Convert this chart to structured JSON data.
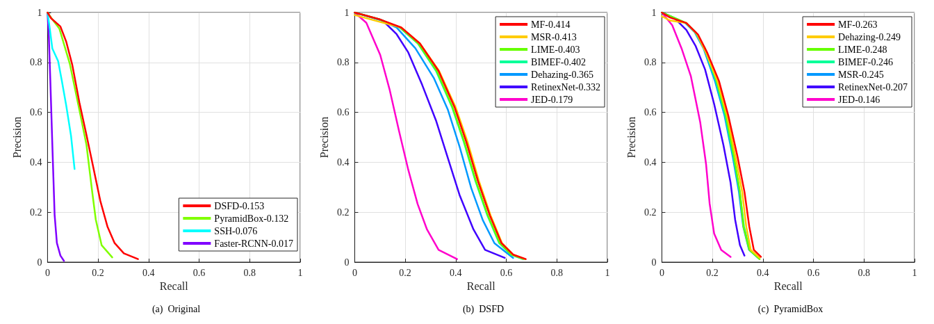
{
  "chart_data": [
    {
      "type": "line",
      "title": "(a)  Original",
      "xlabel": "Recall",
      "ylabel": "Precision",
      "xlim": [
        0,
        1
      ],
      "ylim": [
        0,
        1
      ],
      "xticks": [
        0,
        0.2,
        0.4,
        0.6,
        0.8,
        1
      ],
      "yticks": [
        0,
        0.2,
        0.4,
        0.6,
        0.8,
        1
      ],
      "grid": true,
      "legend": "bottom right",
      "marker": "none",
      "line_style": "solid",
      "series": [
        {
          "name": "DSFD-0.153",
          "color": "#ff0000",
          "x": [
            0,
            0.014,
            0.051,
            0.074,
            0.098,
            0.126,
            0.154,
            0.181,
            0.209,
            0.237,
            0.265,
            0.302,
            0.358
          ],
          "values": [
            1,
            0.977,
            0.944,
            0.883,
            0.79,
            0.64,
            0.51,
            0.38,
            0.245,
            0.143,
            0.077,
            0.035,
            0.012
          ]
        },
        {
          "name": "PyramidBox-0.132",
          "color": "#80ff00",
          "x": [
            0,
            0.023,
            0.047,
            0.088,
            0.126,
            0.154,
            0.177,
            0.191,
            0.214,
            0.256
          ],
          "values": [
            1,
            0.967,
            0.935,
            0.795,
            0.61,
            0.47,
            0.28,
            0.17,
            0.068,
            0.019
          ]
        },
        {
          "name": "SSH-0.076",
          "color": "#00ffff",
          "x": [
            0,
            0.009,
            0.019,
            0.042,
            0.056,
            0.074,
            0.093,
            0.107
          ],
          "values": [
            1,
            0.935,
            0.856,
            0.805,
            0.73,
            0.627,
            0.506,
            0.373
          ]
        },
        {
          "name": "Faster-RCNN-0.017",
          "color": "#8000ff",
          "x": [
            0,
            0.005,
            0.011,
            0.019,
            0.028,
            0.037,
            0.051,
            0.065
          ],
          "values": [
            1,
            0.91,
            0.73,
            0.47,
            0.19,
            0.077,
            0.026,
            0.005
          ]
        }
      ]
    },
    {
      "type": "line",
      "title": "(b)  DSFD",
      "xlabel": "Recall",
      "ylabel": "Precision",
      "xlim": [
        0,
        1
      ],
      "ylim": [
        0,
        1
      ],
      "xticks": [
        0,
        0.2,
        0.4,
        0.6,
        0.8,
        1
      ],
      "yticks": [
        0,
        0.2,
        0.4,
        0.6,
        0.8,
        1
      ],
      "grid": true,
      "legend": "top right",
      "marker": "none",
      "line_style": "solid",
      "series": [
        {
          "name": "MF-0.414",
          "color": "#ff0000",
          "x": [
            0,
            0.101,
            0.184,
            0.258,
            0.332,
            0.396,
            0.442,
            0.488,
            0.535,
            0.581,
            0.627,
            0.677
          ],
          "values": [
            1,
            0.972,
            0.94,
            0.876,
            0.766,
            0.619,
            0.481,
            0.324,
            0.187,
            0.076,
            0.03,
            0.012
          ]
        },
        {
          "name": "MSR-0.413",
          "color": "#ffcc00",
          "x": [
            0,
            0.101,
            0.184,
            0.258,
            0.334,
            0.4,
            0.447,
            0.492,
            0.538,
            0.583,
            0.627,
            0.675
          ],
          "values": [
            0.99,
            0.962,
            0.94,
            0.876,
            0.766,
            0.619,
            0.481,
            0.324,
            0.187,
            0.076,
            0.03,
            0.012
          ]
        },
        {
          "name": "LIME-0.403",
          "color": "#66ff00",
          "x": [
            0,
            0.1,
            0.18,
            0.252,
            0.325,
            0.388,
            0.434,
            0.48,
            0.527,
            0.574,
            0.62,
            0.67
          ],
          "values": [
            1,
            0.972,
            0.94,
            0.876,
            0.766,
            0.619,
            0.481,
            0.324,
            0.187,
            0.076,
            0.03,
            0.012
          ]
        },
        {
          "name": "BIMEF-0.402",
          "color": "#00ff99",
          "x": [
            0,
            0.1,
            0.178,
            0.25,
            0.322,
            0.386,
            0.432,
            0.478,
            0.525,
            0.572,
            0.618,
            0.665
          ],
          "values": [
            1,
            0.972,
            0.94,
            0.876,
            0.766,
            0.619,
            0.481,
            0.324,
            0.187,
            0.076,
            0.03,
            0.012
          ]
        },
        {
          "name": "Dehazing-0.365",
          "color": "#0099ff",
          "x": [
            0,
            0.101,
            0.166,
            0.24,
            0.313,
            0.369,
            0.415,
            0.461,
            0.507,
            0.553,
            0.627
          ],
          "values": [
            1,
            0.97,
            0.94,
            0.857,
            0.738,
            0.61,
            0.463,
            0.297,
            0.168,
            0.076,
            0.017
          ]
        },
        {
          "name": "RetinexNet-0.332",
          "color": "#4000ff",
          "x": [
            0,
            0.111,
            0.166,
            0.212,
            0.267,
            0.323,
            0.369,
            0.415,
            0.47,
            0.516,
            0.594
          ],
          "values": [
            1,
            0.968,
            0.913,
            0.84,
            0.71,
            0.564,
            0.416,
            0.269,
            0.131,
            0.049,
            0.017
          ]
        },
        {
          "name": "JED-0.179",
          "color": "#ff00cc",
          "x": [
            0,
            0.046,
            0.101,
            0.138,
            0.175,
            0.212,
            0.249,
            0.286,
            0.332,
            0.405
          ],
          "values": [
            1,
            0.959,
            0.83,
            0.692,
            0.527,
            0.37,
            0.233,
            0.131,
            0.049,
            0.012
          ]
        }
      ]
    },
    {
      "type": "line",
      "title": "(c)  PyramidBox",
      "xlabel": "Recall",
      "ylabel": "Precision",
      "xlim": [
        0,
        1
      ],
      "ylim": [
        0,
        1
      ],
      "xticks": [
        0,
        0.2,
        0.4,
        0.6,
        0.8,
        1
      ],
      "yticks": [
        0,
        0.2,
        0.4,
        0.6,
        0.8,
        1
      ],
      "grid": true,
      "legend": "top right",
      "marker": "none",
      "line_style": "solid",
      "series": [
        {
          "name": "MF-0.263",
          "color": "#ff0000",
          "x": [
            0,
            0.032,
            0.097,
            0.143,
            0.18,
            0.226,
            0.263,
            0.3,
            0.327,
            0.346,
            0.364,
            0.392
          ],
          "values": [
            1,
            0.98,
            0.958,
            0.912,
            0.838,
            0.726,
            0.587,
            0.42,
            0.281,
            0.142,
            0.049,
            0.021
          ]
        },
        {
          "name": "Dehazing-0.249",
          "color": "#ffcc00",
          "x": [
            0,
            0.032,
            0.097,
            0.14,
            0.175,
            0.22,
            0.258,
            0.292,
            0.318,
            0.334,
            0.352,
            0.387
          ],
          "values": [
            0.985,
            0.968,
            0.958,
            0.912,
            0.838,
            0.726,
            0.587,
            0.42,
            0.281,
            0.142,
            0.049,
            0.017
          ]
        },
        {
          "name": "LIME-0.248",
          "color": "#66ff00",
          "x": [
            0,
            0.097,
            0.134,
            0.171,
            0.217,
            0.254,
            0.286,
            0.309,
            0.323,
            0.346,
            0.387
          ],
          "values": [
            1,
            0.958,
            0.921,
            0.856,
            0.726,
            0.587,
            0.42,
            0.281,
            0.142,
            0.049,
            0.012
          ]
        },
        {
          "name": "BIMEF-0.246",
          "color": "#00ff99",
          "x": [
            0,
            0.095,
            0.132,
            0.168,
            0.214,
            0.251,
            0.284,
            0.308,
            0.325,
            0.348,
            0.385
          ],
          "values": [
            1,
            0.958,
            0.921,
            0.856,
            0.726,
            0.587,
            0.42,
            0.281,
            0.142,
            0.049,
            0.014
          ]
        },
        {
          "name": "MSR-0.245",
          "color": "#0099ff",
          "x": [
            0,
            0.093,
            0.13,
            0.165,
            0.21,
            0.248,
            0.281,
            0.305,
            0.322,
            0.345,
            0.38
          ],
          "values": [
            1,
            0.958,
            0.921,
            0.856,
            0.726,
            0.587,
            0.42,
            0.281,
            0.142,
            0.049,
            0.018
          ]
        },
        {
          "name": "RetinexNet-0.207",
          "color": "#4000ff",
          "x": [
            0,
            0.051,
            0.097,
            0.134,
            0.171,
            0.207,
            0.244,
            0.272,
            0.29,
            0.309,
            0.327
          ],
          "values": [
            1,
            0.977,
            0.93,
            0.865,
            0.772,
            0.633,
            0.467,
            0.318,
            0.17,
            0.068,
            0.026
          ]
        },
        {
          "name": "JED-0.146",
          "color": "#ff00cc",
          "x": [
            0,
            0.041,
            0.078,
            0.115,
            0.152,
            0.175,
            0.189,
            0.207,
            0.235,
            0.272
          ],
          "values": [
            1,
            0.949,
            0.856,
            0.744,
            0.559,
            0.392,
            0.235,
            0.114,
            0.049,
            0.021
          ]
        }
      ]
    }
  ]
}
